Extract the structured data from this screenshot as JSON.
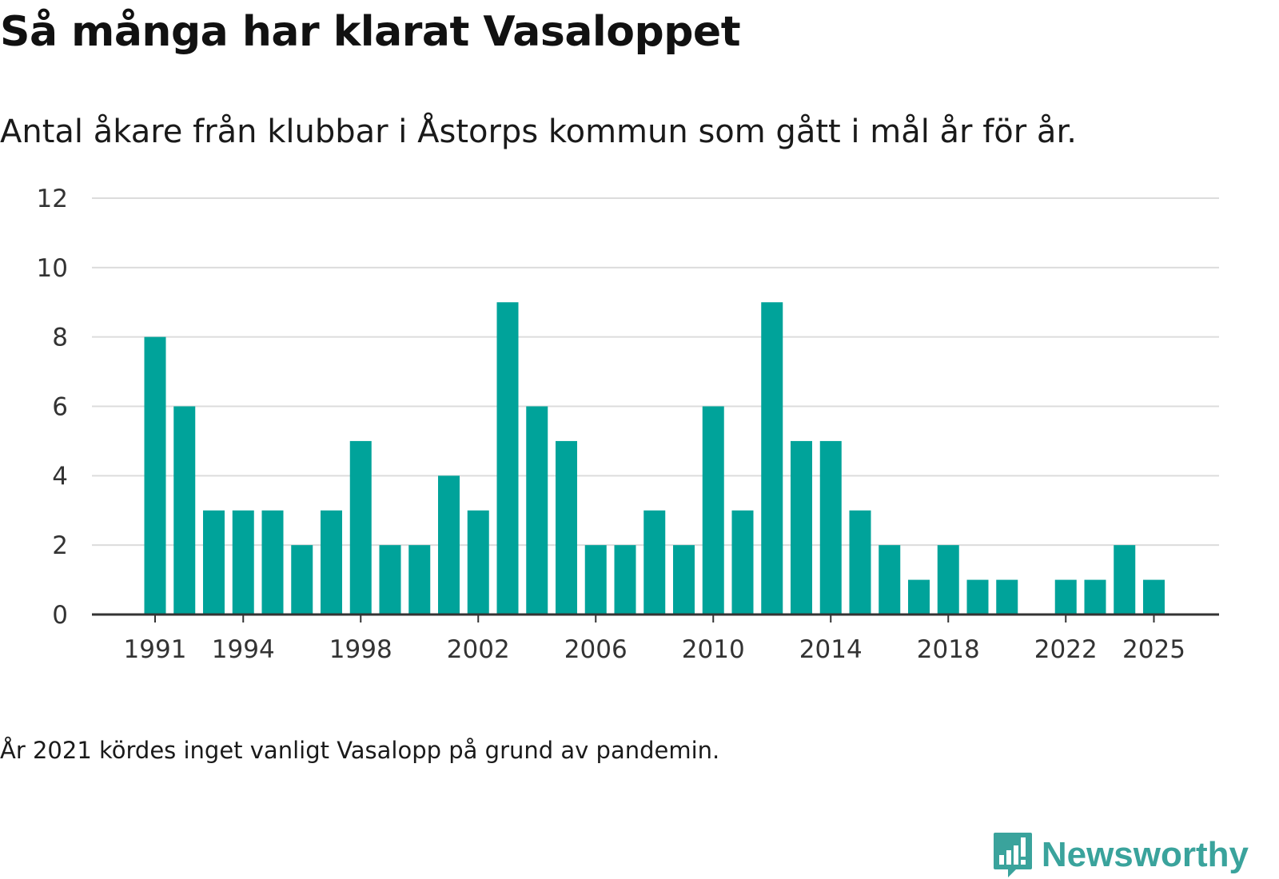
{
  "chart_data": {
    "type": "bar",
    "title": "Så många har klarat Vasaloppet",
    "subtitle": "Antal åkare från klubbar i Åstorps kommun som gått i mål år för år.",
    "categories": [
      "1991",
      "1992",
      "1993",
      "1994",
      "1995",
      "1996",
      "1997",
      "1998",
      "1999",
      "2000",
      "2001",
      "2002",
      "2003",
      "2004",
      "2005",
      "2006",
      "2007",
      "2008",
      "2009",
      "2010",
      "2011",
      "2012",
      "2013",
      "2014",
      "2015",
      "2016",
      "2017",
      "2018",
      "2019",
      "2020",
      "2021",
      "2022",
      "2023",
      "2024",
      "2025"
    ],
    "values": [
      8,
      6,
      3,
      3,
      3,
      2,
      3,
      5,
      2,
      2,
      4,
      3,
      9,
      6,
      5,
      2,
      2,
      3,
      2,
      6,
      3,
      9,
      5,
      5,
      3,
      2,
      1,
      2,
      1,
      1,
      0,
      1,
      1,
      2,
      1
    ],
    "x_tick_labels": [
      "1991",
      "1994",
      "1998",
      "2002",
      "2006",
      "2010",
      "2014",
      "2018",
      "2022",
      "2025"
    ],
    "y_tick_labels": [
      "0",
      "2",
      "4",
      "6",
      "8",
      "10",
      "12"
    ],
    "ylim": [
      0,
      12
    ],
    "xlabel": "",
    "ylabel": "",
    "grid": true,
    "bar_color": "#00a39a",
    "note": "År 2021 kördes inget vanligt Vasalopp på grund av pandemin."
  },
  "brand": {
    "name": "Newsworthy",
    "logo_icon": "newsworthy-logo-icon",
    "color": "#3aa39c"
  }
}
